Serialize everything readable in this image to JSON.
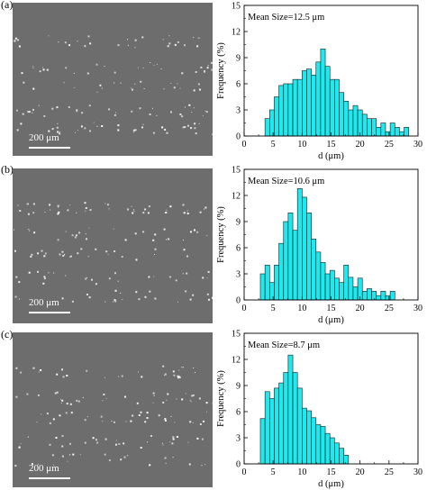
{
  "panels": [
    {
      "label": "(a)",
      "scale_bar": "200 μm"
    },
    {
      "label": "(b)",
      "scale_bar": "200 μm"
    },
    {
      "label": "(c)",
      "scale_bar": "200 μm"
    }
  ],
  "colors": {
    "bar_fill": "#1de9ee",
    "bar_stroke": "#1a1a1a",
    "micrograph_bg": "#6d6d6d",
    "particle": "#ffffff"
  },
  "chart_data": [
    {
      "type": "bar",
      "annotation": "Mean Size=12.5 μm",
      "xlabel": "d (μm)",
      "ylabel": "Frequency (%)",
      "xlim": [
        0,
        30
      ],
      "ylim": [
        0,
        15
      ],
      "xticks": [
        0,
        5,
        10,
        15,
        20,
        25,
        30
      ],
      "yticks": [
        0,
        3,
        6,
        9,
        12,
        15
      ],
      "bin_width": 0.8,
      "x": [
        4,
        4.8,
        5.6,
        6.4,
        7.2,
        8,
        8.8,
        9.6,
        10.4,
        11.2,
        12,
        12.8,
        13.6,
        14.4,
        15.2,
        16,
        16.8,
        17.6,
        18.4,
        19.2,
        20,
        20.8,
        21.6,
        22.4,
        23.2,
        24,
        24.8,
        25.6,
        26.4,
        27.2,
        28
      ],
      "values": [
        2,
        3,
        4.5,
        5.8,
        6,
        6,
        6.5,
        6.5,
        7.5,
        7.7,
        7,
        8.5,
        10,
        8,
        6.5,
        6.5,
        5,
        4,
        3,
        3.5,
        3,
        2.5,
        2,
        2,
        1,
        1.5,
        0.5,
        1.5,
        1,
        0.5,
        1
      ]
    },
    {
      "type": "bar",
      "annotation": "Mean Size=10.6 μm",
      "xlabel": "d (μm)",
      "ylabel": "Frequency (%)",
      "xlim": [
        0,
        30
      ],
      "ylim": [
        0,
        15
      ],
      "xticks": [
        0,
        5,
        10,
        15,
        20,
        25,
        30
      ],
      "yticks": [
        0,
        3,
        6,
        9,
        12,
        15
      ],
      "bin_width": 0.8,
      "x": [
        3.2,
        4,
        4.8,
        5.6,
        6.4,
        7.2,
        8,
        8.8,
        9.6,
        10.4,
        11.2,
        12,
        12.8,
        13.6,
        14.4,
        15.2,
        16,
        16.8,
        17.6,
        18.4,
        19.2,
        20,
        20.8,
        21.6,
        22.4,
        23.2,
        24,
        24.8,
        25.6
      ],
      "values": [
        3,
        4,
        2,
        4,
        6.5,
        9,
        10,
        8,
        12.8,
        11.8,
        10,
        7,
        5.5,
        4.3,
        3,
        3.4,
        2.5,
        2,
        4,
        2.6,
        1.5,
        2.5,
        1,
        1.3,
        1,
        0.5,
        1,
        0.5,
        1
      ]
    },
    {
      "type": "bar",
      "annotation": "Mean Size=8.7 μm",
      "xlabel": "d (μm)",
      "ylabel": "Frequency (%)",
      "xlim": [
        0,
        30
      ],
      "ylim": [
        0,
        15
      ],
      "xticks": [
        0,
        5,
        10,
        15,
        20,
        25,
        30
      ],
      "yticks": [
        0,
        3,
        6,
        9,
        12,
        15
      ],
      "bin_width": 0.8,
      "x": [
        3.2,
        4,
        4.8,
        5.6,
        6.4,
        7.2,
        8,
        8.8,
        9.6,
        10.4,
        11.2,
        12,
        12.8,
        13.6,
        14.4,
        15.2,
        16,
        16.8,
        17.6
      ],
      "values": [
        5.2,
        8.3,
        7.5,
        8.7,
        9.3,
        10.5,
        12.5,
        10.5,
        8.7,
        6.4,
        6.1,
        5.3,
        4.5,
        4.3,
        3.5,
        3,
        2.4,
        1.8,
        1
      ]
    }
  ]
}
